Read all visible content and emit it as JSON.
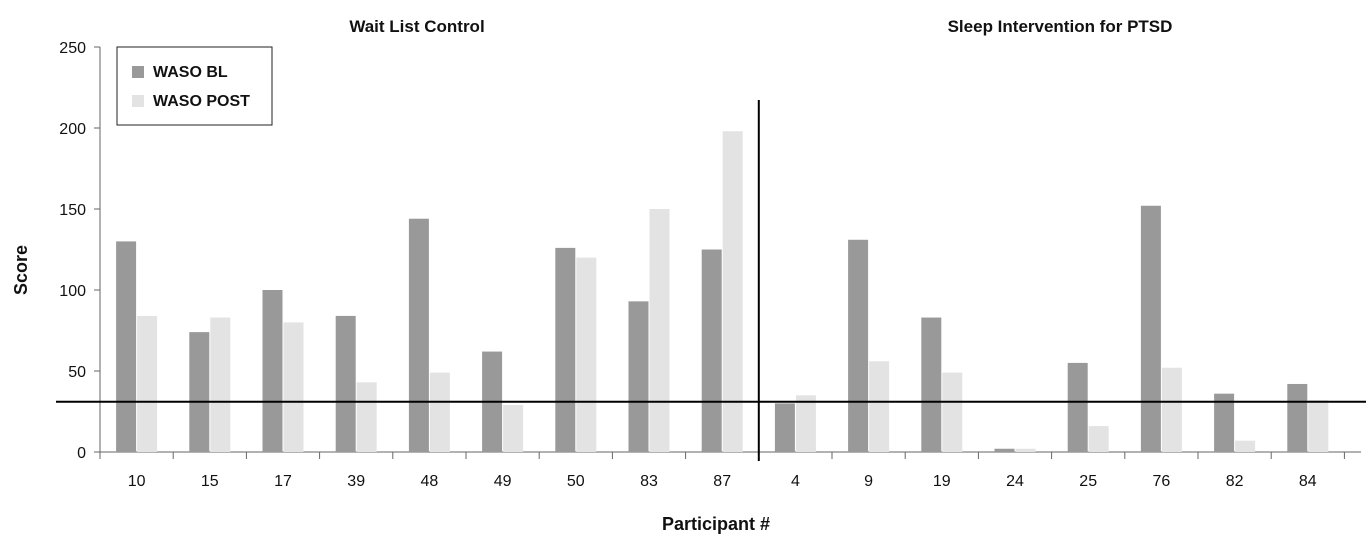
{
  "chart_data": {
    "type": "bar",
    "xlabel": "Participant #",
    "ylabel": "Score",
    "ylim": [
      0,
      250
    ],
    "yticks": [
      0,
      50,
      100,
      150,
      200,
      250
    ],
    "grid": false,
    "legend_position": "top-left",
    "colors": {
      "WASO BL": "#999999",
      "WASO POST": "#e3e3e3",
      "axis": "#666666",
      "reference": "#000000"
    },
    "reference_line_y": 31,
    "groups": [
      {
        "title": "Wait List Control",
        "categories": [
          "10",
          "15",
          "17",
          "39",
          "48",
          "49",
          "50",
          "83",
          "87"
        ],
        "series": [
          {
            "name": "WASO BL",
            "values": [
              130,
              74,
              100,
              84,
              144,
              62,
              126,
              93,
              125
            ]
          },
          {
            "name": "WASO POST",
            "values": [
              84,
              83,
              80,
              43,
              49,
              29,
              120,
              150,
              198
            ]
          }
        ]
      },
      {
        "title": "Sleep Intervention for PTSD",
        "categories": [
          "4",
          "9",
          "19",
          "24",
          "25",
          "76",
          "82",
          "84"
        ],
        "series": [
          {
            "name": "WASO BL",
            "values": [
              30,
              131,
              83,
              2,
              55,
              152,
              36,
              42
            ]
          },
          {
            "name": "WASO POST",
            "values": [
              35,
              56,
              49,
              2,
              16,
              52,
              7,
              32
            ]
          }
        ]
      }
    ],
    "legend": [
      "WASO BL",
      "WASO POST"
    ]
  }
}
